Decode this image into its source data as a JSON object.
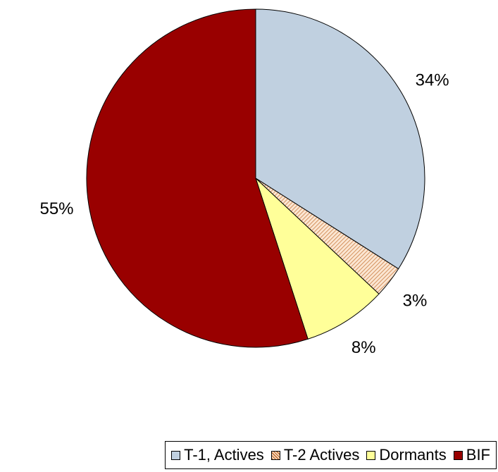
{
  "chart_data": {
    "type": "pie",
    "categories": [
      "T-1, Actives",
      "T-2 Actives",
      "Dormants",
      "BIF"
    ],
    "values": [
      34,
      3,
      8,
      55
    ],
    "value_labels": [
      "34%",
      "3%",
      "8%",
      "55%"
    ],
    "colors": [
      "#c0d0e0",
      "#f5c9a3",
      "#ffff99",
      "#990000"
    ],
    "hatch": [
      false,
      true,
      false,
      false
    ],
    "legend": "bottom"
  }
}
